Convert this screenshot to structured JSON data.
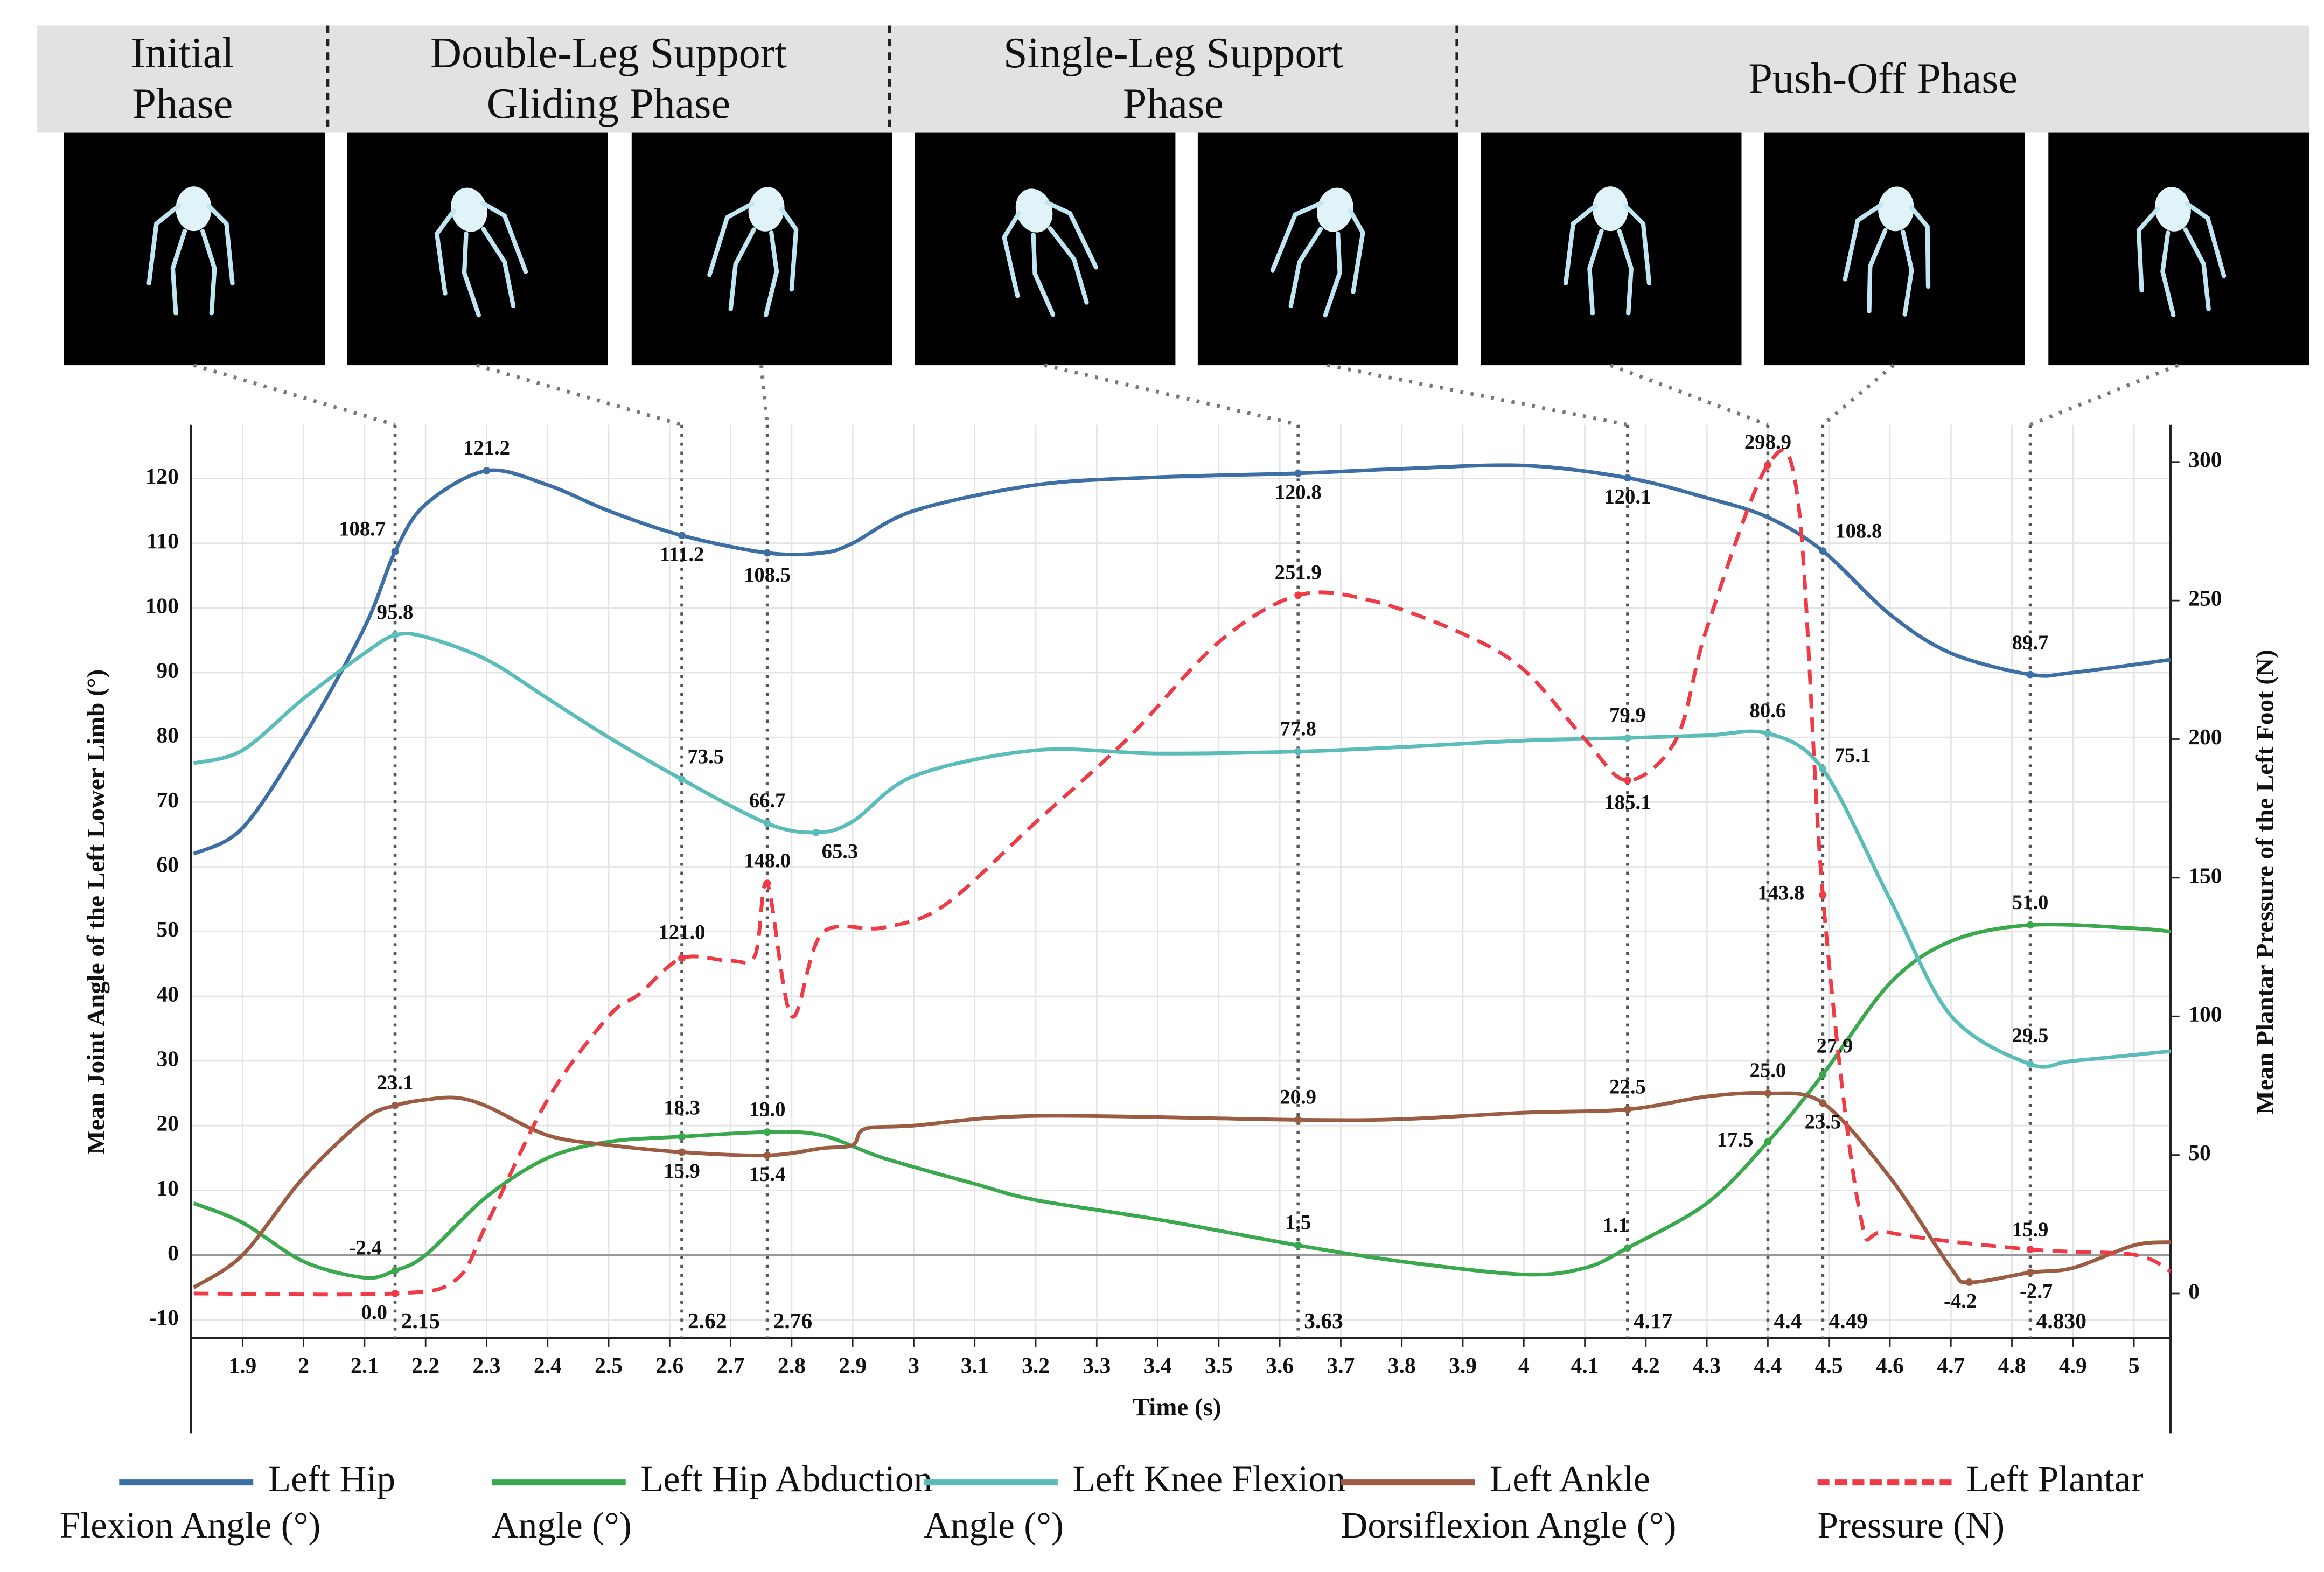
{
  "chart_data": {
    "type": "line",
    "phases": [
      "Initial Phase",
      "Double-Leg Support Gliding Phase",
      "Single-Leg Support Phase",
      "Push-Off Phase"
    ],
    "xlabel": "Time (s)",
    "ylabel": "Mean Joint Angle of the Left Lower Limb (°)",
    "y2label": "Mean Plantar Pressure of the Left Foot (N)",
    "xlim": [
      1.815,
      5.06
    ],
    "ylim": [
      -12.8,
      128.3
    ],
    "y2lim": [
      -16,
      313.4
    ],
    "xticks": [
      1.9,
      2,
      2.1,
      2.2,
      2.3,
      2.4,
      2.5,
      2.6,
      2.7,
      2.8,
      2.9,
      3,
      3.1,
      3.2,
      3.3,
      3.4,
      3.5,
      3.6,
      3.7,
      3.8,
      3.9,
      4,
      4.1,
      4.2,
      4.3,
      4.4,
      4.5,
      4.6,
      4.7,
      4.8,
      4.9,
      5
    ],
    "yticks": [
      -10,
      0,
      10,
      20,
      30,
      40,
      50,
      60,
      70,
      80,
      90,
      100,
      110,
      120
    ],
    "y2ticks": [
      0,
      50,
      100,
      150,
      200,
      250,
      300
    ],
    "grid": true,
    "markers": [
      2.15,
      2.62,
      2.76,
      3.63,
      4.17,
      4.4,
      4.49,
      {
        "value": 4.83,
        "label": "4.830"
      }
    ],
    "series": [
      {
        "name": "Left Hip Flexion Angle (°)",
        "color": "#3d6fa5",
        "dash": false,
        "x": [
          1.82,
          1.9,
          2.0,
          2.1,
          2.15,
          2.2,
          2.3,
          2.4,
          2.5,
          2.62,
          2.76,
          2.85,
          2.9,
          3.0,
          3.2,
          3.4,
          3.63,
          3.8,
          4.0,
          4.17,
          4.3,
          4.4,
          4.49,
          4.6,
          4.7,
          4.83,
          4.9,
          5.06
        ],
        "values": [
          62,
          66,
          80,
          97,
          108.7,
          116,
          121.2,
          119,
          115,
          111.2,
          108.5,
          108.5,
          110,
          115,
          119,
          120.2,
          120.8,
          121.5,
          122,
          120.1,
          117,
          114,
          108.8,
          99,
          93,
          89.7,
          90,
          92
        ],
        "value_labels": [
          null,
          null,
          null,
          null,
          "108.7",
          null,
          "121.2",
          null,
          null,
          "111.2",
          "108.5",
          null,
          null,
          null,
          null,
          null,
          "120.8",
          null,
          null,
          "120.1",
          null,
          null,
          "108.8",
          null,
          null,
          "89.7",
          null,
          null
        ]
      },
      {
        "name": "Left Hip Abduction Angle (°)",
        "color": "#3aa94e",
        "dash": false,
        "x": [
          1.82,
          1.9,
          2.0,
          2.1,
          2.15,
          2.2,
          2.3,
          2.4,
          2.5,
          2.62,
          2.76,
          2.85,
          2.95,
          3.1,
          3.2,
          3.4,
          3.63,
          3.8,
          4.0,
          4.1,
          4.17,
          4.3,
          4.4,
          4.49,
          4.6,
          4.7,
          4.83,
          5.0,
          5.06
        ],
        "values": [
          8,
          5,
          -1,
          -3.5,
          -2.4,
          0,
          9,
          15,
          17.5,
          18.3,
          19.0,
          18.5,
          15,
          11,
          8.5,
          5.5,
          1.5,
          -1,
          -3,
          -2,
          1.1,
          8,
          17.5,
          27.9,
          42,
          48.5,
          51.0,
          50.5,
          50
        ],
        "value_labels": [
          null,
          null,
          null,
          null,
          "-2.4",
          null,
          null,
          null,
          null,
          "18.3",
          "19.0",
          null,
          null,
          null,
          null,
          null,
          "1.5",
          null,
          null,
          null,
          "1.1",
          null,
          "17.5",
          "27.9",
          null,
          null,
          "51.0",
          null,
          null
        ]
      },
      {
        "name": "Left Knee Flexion Angle (°)",
        "color": "#5bbdb9",
        "dash": false,
        "x": [
          1.82,
          1.9,
          2.0,
          2.1,
          2.15,
          2.2,
          2.3,
          2.4,
          2.5,
          2.62,
          2.76,
          2.84,
          2.9,
          3.0,
          3.2,
          3.4,
          3.63,
          3.8,
          4.0,
          4.17,
          4.3,
          4.4,
          4.49,
          4.6,
          4.7,
          4.83,
          4.9,
          5.06
        ],
        "values": [
          76,
          78,
          86,
          93,
          95.8,
          95.5,
          92,
          86,
          80,
          73.5,
          66.7,
          65.3,
          67,
          74,
          78,
          77.5,
          77.8,
          78.5,
          79.5,
          79.9,
          80.3,
          80.6,
          75.1,
          55,
          37,
          29.5,
          30,
          31.5
        ],
        "value_labels": [
          null,
          null,
          null,
          null,
          "95.8",
          null,
          null,
          null,
          null,
          "73.5",
          "66.7",
          "65.3",
          null,
          null,
          null,
          null,
          "77.8",
          null,
          null,
          "79.9",
          null,
          "80.6",
          "75.1",
          null,
          null,
          "29.5",
          null,
          null
        ]
      },
      {
        "name": "Left Ankle Dorsiflexion Angle (°)",
        "color": "#9b5c44",
        "dash": false,
        "x": [
          1.82,
          1.9,
          2.0,
          2.1,
          2.15,
          2.2,
          2.25,
          2.3,
          2.4,
          2.5,
          2.62,
          2.76,
          2.85,
          2.9,
          2.92,
          3.0,
          3.2,
          3.63,
          3.8,
          4.0,
          4.17,
          4.3,
          4.4,
          4.49,
          4.6,
          4.7,
          4.73,
          4.83,
          4.9,
          5.0,
          5.06
        ],
        "values": [
          -5,
          0,
          12,
          21,
          23.1,
          24,
          24.3,
          23,
          18.5,
          17,
          15.9,
          15.4,
          16.5,
          17,
          19.5,
          20,
          21.5,
          20.9,
          21,
          22,
          22.5,
          24.5,
          25.0,
          23.5,
          12,
          -2,
          -4.2,
          -2.7,
          -2,
          1.5,
          2
        ],
        "value_labels": [
          null,
          null,
          null,
          null,
          "23.1",
          null,
          null,
          null,
          null,
          null,
          "15.9",
          "15.4",
          null,
          null,
          null,
          null,
          null,
          "20.9",
          null,
          null,
          "22.5",
          null,
          "25.0",
          "23.5",
          null,
          null,
          "-4.2",
          "-2.7",
          null,
          null,
          null
        ]
      },
      {
        "name": "Left Plantar Pressure (N)",
        "color": "#ee3b45",
        "dash": true,
        "axis": "y2",
        "x": [
          1.82,
          2.15,
          2.25,
          2.3,
          2.4,
          2.5,
          2.55,
          2.62,
          2.7,
          2.74,
          2.76,
          2.8,
          2.85,
          2.95,
          3.05,
          3.2,
          3.35,
          3.5,
          3.63,
          3.75,
          3.9,
          4.0,
          4.1,
          4.17,
          4.25,
          4.3,
          4.4,
          4.45,
          4.49,
          4.55,
          4.6,
          4.83,
          5.0,
          5.06
        ],
        "values": [
          0,
          0.0,
          5,
          25,
          70,
          100,
          108,
          121.0,
          120,
          122,
          148.0,
          100,
          130,
          132,
          140,
          170,
          200,
          235,
          251.9,
          250,
          238,
          225,
          200,
          185.1,
          200,
          240,
          298.9,
          285,
          143.8,
          30,
          22,
          15.9,
          14,
          8
        ],
        "value_labels": [
          null,
          "0.0",
          null,
          null,
          null,
          null,
          null,
          "121.0",
          null,
          null,
          "148.0",
          null,
          null,
          null,
          null,
          null,
          null,
          null,
          "251.9",
          null,
          null,
          null,
          null,
          "185.1",
          null,
          null,
          "298.9",
          null,
          "143.8",
          null,
          null,
          "15.9",
          null,
          null
        ]
      }
    ]
  }
}
